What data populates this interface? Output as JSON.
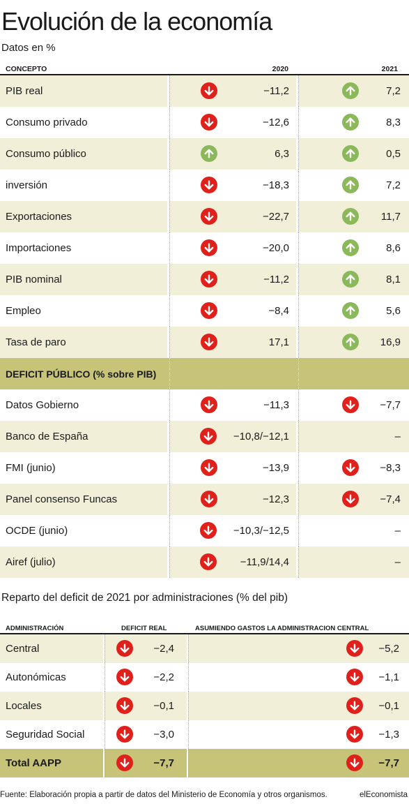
{
  "title": "Evolución de la economía",
  "subtitle": "Datos en %",
  "table1": {
    "headers": {
      "concept": "CONCEPTO",
      "y2020": "2020",
      "y2021": "2021"
    },
    "rows": [
      {
        "label": "PIB real",
        "v2020": "−11,2",
        "t2020": "down",
        "v2021": "7,2",
        "t2021": "up"
      },
      {
        "label": "Consumo privado",
        "v2020": "−12,6",
        "t2020": "down",
        "v2021": "8,3",
        "t2021": "up"
      },
      {
        "label": "Consumo público",
        "v2020": "6,3",
        "t2020": "up",
        "v2021": "0,5",
        "t2021": "up"
      },
      {
        "label": "inversión",
        "v2020": "−18,3",
        "t2020": "down",
        "v2021": "7,2",
        "t2021": "up"
      },
      {
        "label": "Exportaciones",
        "v2020": "−22,7",
        "t2020": "down",
        "v2021": "11,7",
        "t2021": "up"
      },
      {
        "label": "Importaciones",
        "v2020": "−20,0",
        "t2020": "down",
        "v2021": "8,6",
        "t2021": "up"
      },
      {
        "label": "PIB nominal",
        "v2020": "−11,2",
        "t2020": "down",
        "v2021": "8,1",
        "t2021": "up"
      },
      {
        "label": "Empleo",
        "v2020": "−8,4",
        "t2020": "down",
        "v2021": "5,6",
        "t2021": "up"
      },
      {
        "label": "Tasa de paro",
        "v2020": "17,1",
        "t2020": "down",
        "v2021": "16,9",
        "t2021": "up"
      }
    ],
    "section_label": "DEFICIT PÚBLICO (% sobre PIB)",
    "deficit_rows": [
      {
        "label": "Datos Gobierno",
        "v2020": "−11,3",
        "t2020": "down",
        "v2021": "−7,7",
        "t2021": "down"
      },
      {
        "label": "Banco de España",
        "v2020": "−10,8/−12,1",
        "t2020": "down",
        "v2021": "–",
        "t2021": ""
      },
      {
        "label": "FMI (junio)",
        "v2020": "−13,9",
        "t2020": "down",
        "v2021": "−8,3",
        "t2021": "down"
      },
      {
        "label": "Panel consenso Funcas",
        "v2020": "−12,3",
        "t2020": "down",
        "v2021": "−7,4",
        "t2021": "down"
      },
      {
        "label": "OCDE (junio)",
        "v2020": "−10,3/−12,5",
        "t2020": "down",
        "v2021": "–",
        "t2021": ""
      },
      {
        "label": "Airef (julio)",
        "v2020": "−11,9/14,4",
        "t2020": "down",
        "v2021": "–",
        "t2021": ""
      }
    ]
  },
  "table2": {
    "heading": "Reparto del deficit de 2021 por administraciones (% del pib)",
    "headers": {
      "admin": "ADMINISTRACIÓN",
      "real": "DEFICIT REAL",
      "central": "ASUMIENDO GASTOS LA ADMINISTRACION CENTRAL"
    },
    "rows": [
      {
        "label": "Central",
        "real": "−2,4",
        "central": "−5,2"
      },
      {
        "label": "Autonómicas",
        "real": "−2,2",
        "central": "−1,1"
      },
      {
        "label": "Locales",
        "real": "−0,1",
        "central": "−0,1"
      },
      {
        "label": "Seguridad Social",
        "real": "−3,0",
        "central": "−1,3"
      },
      {
        "label": "Total AAPP",
        "real": "−7,7",
        "central": "−7,7"
      }
    ]
  },
  "footer": {
    "source": "Fuente: Elaboración propia a partir de datos del Ministerio de Economía y otros organismos.",
    "brand": "elEconomista"
  },
  "colors": {
    "down": "#e0201b",
    "up": "#8ab85a",
    "shade": "#f2efd9",
    "highlight": "#c7c47a"
  }
}
